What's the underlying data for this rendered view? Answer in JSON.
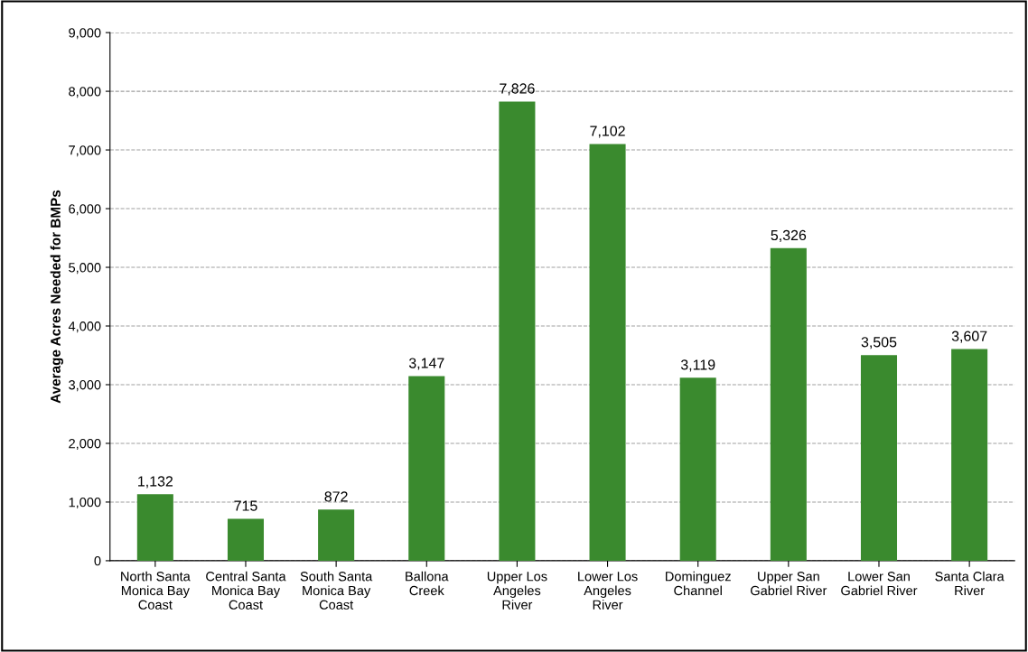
{
  "chart_data": {
    "type": "bar",
    "ylabel": "Average Acres Needed for BMPs",
    "categories": [
      "North Santa\nMonica Bay\nCoast",
      "Central Santa\nMonica Bay\nCoast",
      "South Santa\nMonica Bay\nCoast",
      "Ballona\nCreek",
      "Upper Los\nAngeles\nRiver",
      "Lower Los\nAngeles\nRiver",
      "Dominguez\nChannel",
      "Upper San\nGabriel River",
      "Lower San\nGabriel River",
      "Santa Clara\nRiver"
    ],
    "values": [
      1132,
      715,
      872,
      3147,
      7826,
      7102,
      3119,
      5326,
      3505,
      3607
    ],
    "color": "#3a8a2e",
    "ylim": [
      0,
      9000
    ],
    "yticks": [
      {
        "value": 0,
        "label": "0"
      },
      {
        "value": 1000,
        "label": "1,000"
      },
      {
        "value": 2000,
        "label": "2,000"
      },
      {
        "value": 3000,
        "label": "3,000"
      },
      {
        "value": 4000,
        "label": "4,000"
      },
      {
        "value": 5000,
        "label": "5,000"
      },
      {
        "value": 6000,
        "label": "6,000"
      },
      {
        "value": 7000,
        "label": "7,000"
      },
      {
        "value": 8000,
        "label": "8,000"
      },
      {
        "value": 9000,
        "label": "9,000"
      }
    ],
    "value_labels": [
      "1,132",
      "715",
      "872",
      "3,147",
      "7,826",
      "7,102",
      "3,119",
      "5,326",
      "3,505",
      "3,607"
    ],
    "grid": "y"
  }
}
